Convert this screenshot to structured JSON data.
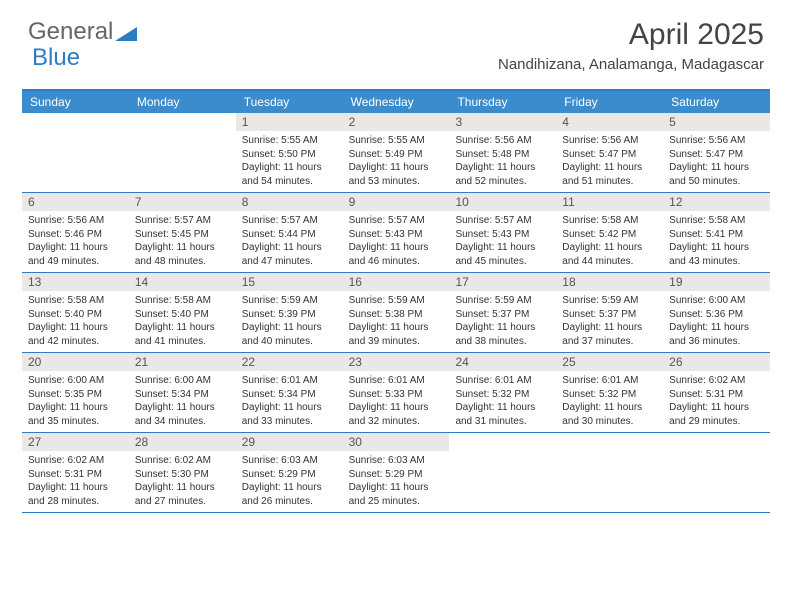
{
  "logo": {
    "text1": "General",
    "text2": "Blue"
  },
  "title": "April 2025",
  "location": "Nandihizana, Analamanga, Madagascar",
  "colors": {
    "header_bg": "#3b8ccc",
    "border": "#2e7cc2",
    "daynum_bg": "#e8e8e8",
    "text": "#333333",
    "title": "#444444"
  },
  "day_headers": [
    "Sunday",
    "Monday",
    "Tuesday",
    "Wednesday",
    "Thursday",
    "Friday",
    "Saturday"
  ],
  "weeks": [
    [
      {
        "n": "",
        "sr": "",
        "ss": "",
        "dl": ""
      },
      {
        "n": "",
        "sr": "",
        "ss": "",
        "dl": ""
      },
      {
        "n": "1",
        "sr": "Sunrise: 5:55 AM",
        "ss": "Sunset: 5:50 PM",
        "dl": "Daylight: 11 hours and 54 minutes."
      },
      {
        "n": "2",
        "sr": "Sunrise: 5:55 AM",
        "ss": "Sunset: 5:49 PM",
        "dl": "Daylight: 11 hours and 53 minutes."
      },
      {
        "n": "3",
        "sr": "Sunrise: 5:56 AM",
        "ss": "Sunset: 5:48 PM",
        "dl": "Daylight: 11 hours and 52 minutes."
      },
      {
        "n": "4",
        "sr": "Sunrise: 5:56 AM",
        "ss": "Sunset: 5:47 PM",
        "dl": "Daylight: 11 hours and 51 minutes."
      },
      {
        "n": "5",
        "sr": "Sunrise: 5:56 AM",
        "ss": "Sunset: 5:47 PM",
        "dl": "Daylight: 11 hours and 50 minutes."
      }
    ],
    [
      {
        "n": "6",
        "sr": "Sunrise: 5:56 AM",
        "ss": "Sunset: 5:46 PM",
        "dl": "Daylight: 11 hours and 49 minutes."
      },
      {
        "n": "7",
        "sr": "Sunrise: 5:57 AM",
        "ss": "Sunset: 5:45 PM",
        "dl": "Daylight: 11 hours and 48 minutes."
      },
      {
        "n": "8",
        "sr": "Sunrise: 5:57 AM",
        "ss": "Sunset: 5:44 PM",
        "dl": "Daylight: 11 hours and 47 minutes."
      },
      {
        "n": "9",
        "sr": "Sunrise: 5:57 AM",
        "ss": "Sunset: 5:43 PM",
        "dl": "Daylight: 11 hours and 46 minutes."
      },
      {
        "n": "10",
        "sr": "Sunrise: 5:57 AM",
        "ss": "Sunset: 5:43 PM",
        "dl": "Daylight: 11 hours and 45 minutes."
      },
      {
        "n": "11",
        "sr": "Sunrise: 5:58 AM",
        "ss": "Sunset: 5:42 PM",
        "dl": "Daylight: 11 hours and 44 minutes."
      },
      {
        "n": "12",
        "sr": "Sunrise: 5:58 AM",
        "ss": "Sunset: 5:41 PM",
        "dl": "Daylight: 11 hours and 43 minutes."
      }
    ],
    [
      {
        "n": "13",
        "sr": "Sunrise: 5:58 AM",
        "ss": "Sunset: 5:40 PM",
        "dl": "Daylight: 11 hours and 42 minutes."
      },
      {
        "n": "14",
        "sr": "Sunrise: 5:58 AM",
        "ss": "Sunset: 5:40 PM",
        "dl": "Daylight: 11 hours and 41 minutes."
      },
      {
        "n": "15",
        "sr": "Sunrise: 5:59 AM",
        "ss": "Sunset: 5:39 PM",
        "dl": "Daylight: 11 hours and 40 minutes."
      },
      {
        "n": "16",
        "sr": "Sunrise: 5:59 AM",
        "ss": "Sunset: 5:38 PM",
        "dl": "Daylight: 11 hours and 39 minutes."
      },
      {
        "n": "17",
        "sr": "Sunrise: 5:59 AM",
        "ss": "Sunset: 5:37 PM",
        "dl": "Daylight: 11 hours and 38 minutes."
      },
      {
        "n": "18",
        "sr": "Sunrise: 5:59 AM",
        "ss": "Sunset: 5:37 PM",
        "dl": "Daylight: 11 hours and 37 minutes."
      },
      {
        "n": "19",
        "sr": "Sunrise: 6:00 AM",
        "ss": "Sunset: 5:36 PM",
        "dl": "Daylight: 11 hours and 36 minutes."
      }
    ],
    [
      {
        "n": "20",
        "sr": "Sunrise: 6:00 AM",
        "ss": "Sunset: 5:35 PM",
        "dl": "Daylight: 11 hours and 35 minutes."
      },
      {
        "n": "21",
        "sr": "Sunrise: 6:00 AM",
        "ss": "Sunset: 5:34 PM",
        "dl": "Daylight: 11 hours and 34 minutes."
      },
      {
        "n": "22",
        "sr": "Sunrise: 6:01 AM",
        "ss": "Sunset: 5:34 PM",
        "dl": "Daylight: 11 hours and 33 minutes."
      },
      {
        "n": "23",
        "sr": "Sunrise: 6:01 AM",
        "ss": "Sunset: 5:33 PM",
        "dl": "Daylight: 11 hours and 32 minutes."
      },
      {
        "n": "24",
        "sr": "Sunrise: 6:01 AM",
        "ss": "Sunset: 5:32 PM",
        "dl": "Daylight: 11 hours and 31 minutes."
      },
      {
        "n": "25",
        "sr": "Sunrise: 6:01 AM",
        "ss": "Sunset: 5:32 PM",
        "dl": "Daylight: 11 hours and 30 minutes."
      },
      {
        "n": "26",
        "sr": "Sunrise: 6:02 AM",
        "ss": "Sunset: 5:31 PM",
        "dl": "Daylight: 11 hours and 29 minutes."
      }
    ],
    [
      {
        "n": "27",
        "sr": "Sunrise: 6:02 AM",
        "ss": "Sunset: 5:31 PM",
        "dl": "Daylight: 11 hours and 28 minutes."
      },
      {
        "n": "28",
        "sr": "Sunrise: 6:02 AM",
        "ss": "Sunset: 5:30 PM",
        "dl": "Daylight: 11 hours and 27 minutes."
      },
      {
        "n": "29",
        "sr": "Sunrise: 6:03 AM",
        "ss": "Sunset: 5:29 PM",
        "dl": "Daylight: 11 hours and 26 minutes."
      },
      {
        "n": "30",
        "sr": "Sunrise: 6:03 AM",
        "ss": "Sunset: 5:29 PM",
        "dl": "Daylight: 11 hours and 25 minutes."
      },
      {
        "n": "",
        "sr": "",
        "ss": "",
        "dl": ""
      },
      {
        "n": "",
        "sr": "",
        "ss": "",
        "dl": ""
      },
      {
        "n": "",
        "sr": "",
        "ss": "",
        "dl": ""
      }
    ]
  ]
}
